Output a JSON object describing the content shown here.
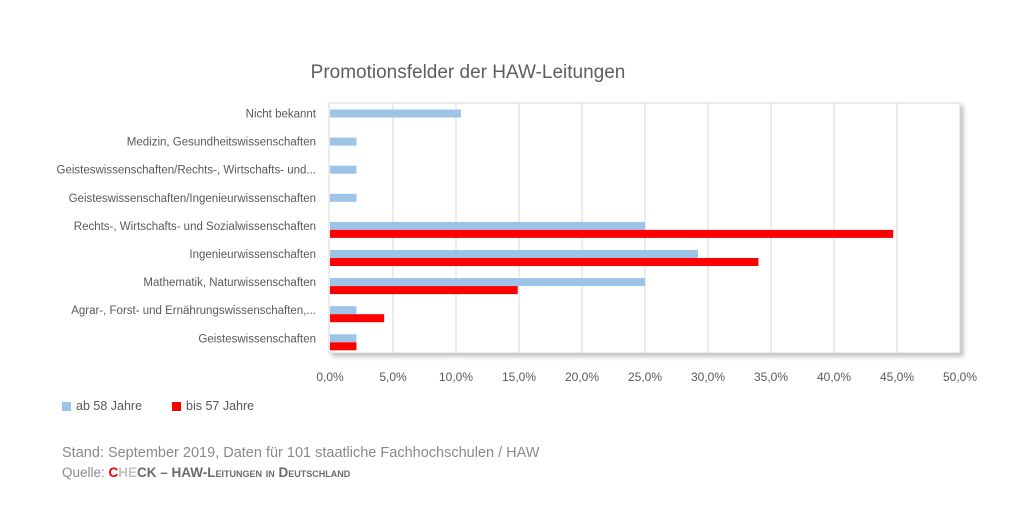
{
  "chart_data": {
    "type": "bar",
    "orientation": "horizontal",
    "title": "Promotionsfelder der HAW-Leitungen",
    "xlabel": "",
    "ylabel": "",
    "xlim": [
      0,
      50
    ],
    "x_ticks": [
      "0,0%",
      "5,0%",
      "10,0%",
      "15,0%",
      "20,0%",
      "25,0%",
      "30,0%",
      "35,0%",
      "40,0%",
      "45,0%",
      "50,0%"
    ],
    "x_tick_values": [
      0,
      5,
      10,
      15,
      20,
      25,
      30,
      35,
      40,
      45,
      50
    ],
    "grid": "vertical",
    "legend_position": "bottom-left",
    "categories": [
      "Nicht bekannt",
      "Medizin, Gesundheitswissenschaften",
      "Geisteswissenschaften/Rechts-, Wirtschafts- und...",
      "Geisteswissenschaften/Ingenieurwissenschaften",
      "Rechts-, Wirtschafts- und Sozialwissenschaften",
      "Ingenieurwissenschaften",
      "Mathematik, Naturwissenschaften",
      "Agrar-, Forst- und Ernährungswissenschaften,...",
      "Geisteswissenschaften"
    ],
    "series": [
      {
        "name": "ab 58 Jahre",
        "color": "#9dc3e6",
        "values": [
          10.4,
          2.1,
          2.1,
          2.1,
          25.0,
          29.2,
          25.0,
          2.1,
          2.1
        ]
      },
      {
        "name": "bis 57 Jahre",
        "color": "#ff0000",
        "values": [
          0,
          0,
          0,
          0,
          44.7,
          34.0,
          14.9,
          4.3,
          2.1
        ]
      }
    ]
  },
  "footer": {
    "note": "Stand: September 2019, Daten für 101 staatliche Fachhochschulen / HAW",
    "source_prefix": "Quelle: ",
    "brand_c": "C",
    "brand_he": "HE",
    "brand_ck": "CK",
    "source_rest": " – HAW-Leitungen in Deutschland"
  }
}
